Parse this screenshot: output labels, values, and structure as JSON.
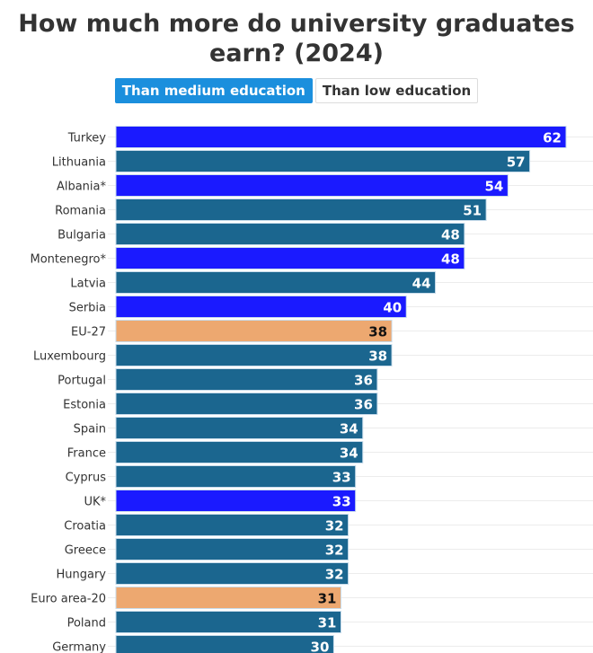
{
  "header": {
    "title_line1": "How much more do university graduates",
    "title_line2": "earn? (2024)"
  },
  "toggles": [
    {
      "label": "Than medium education",
      "active": true
    },
    {
      "label": "Than low education",
      "active": false
    }
  ],
  "colors": {
    "eu_member": "#1b668f",
    "non_eu": "#1a1aff",
    "aggregate": "#eda870",
    "toggle_active": "#1b8fdd"
  },
  "chart_data": {
    "type": "bar",
    "orientation": "horizontal",
    "title": "How much more do university graduates earn? (2024)",
    "xlabel": "",
    "ylabel": "",
    "xlim": [
      0,
      62
    ],
    "grid": true,
    "categories": [
      "Turkey",
      "Lithuania",
      "Albania*",
      "Romania",
      "Bulgaria",
      "Montenegro*",
      "Latvia",
      "Serbia",
      "EU-27",
      "Luxembourg",
      "Portugal",
      "Estonia",
      "Spain",
      "France",
      "Cyprus",
      "UK*",
      "Croatia",
      "Greece",
      "Hungary",
      "Euro area-20",
      "Poland",
      "Germany"
    ],
    "values": [
      62,
      57,
      54,
      51,
      48,
      48,
      44,
      40,
      38,
      38,
      36,
      36,
      34,
      34,
      33,
      33,
      32,
      32,
      32,
      31,
      31,
      30
    ],
    "groups": [
      "non_eu",
      "eu_member",
      "non_eu",
      "eu_member",
      "eu_member",
      "non_eu",
      "eu_member",
      "non_eu",
      "aggregate",
      "eu_member",
      "eu_member",
      "eu_member",
      "eu_member",
      "eu_member",
      "eu_member",
      "non_eu",
      "eu_member",
      "eu_member",
      "eu_member",
      "aggregate",
      "eu_member",
      "eu_member"
    ]
  }
}
